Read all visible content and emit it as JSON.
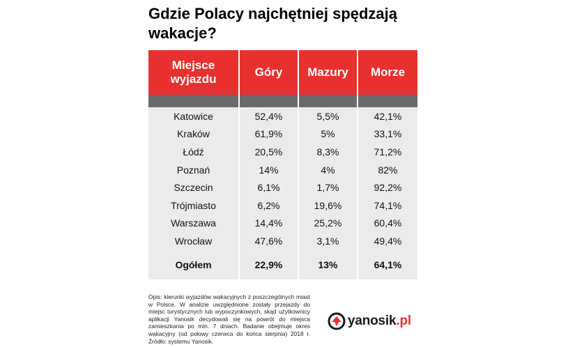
{
  "title": "Gdzie Polacy najchętniej spędzają wakacje?",
  "table": {
    "headers": [
      "Miejsce wyjazdu",
      "Góry",
      "Mazury",
      "Morze"
    ],
    "rows": [
      {
        "city": "Katowice",
        "gory": "52,4%",
        "mazury": "5,5%",
        "morze": "42,1%"
      },
      {
        "city": "Kraków",
        "gory": "61,9%",
        "mazury": "5%",
        "morze": "33,1%"
      },
      {
        "city": "Łódź",
        "gory": "20,5%",
        "mazury": "8,3%",
        "morze": "71,2%"
      },
      {
        "city": "Poznań",
        "gory": "14%",
        "mazury": "4%",
        "morze": "82%"
      },
      {
        "city": "Szczecin",
        "gory": "6,1%",
        "mazury": "1,7%",
        "morze": "92,2%"
      },
      {
        "city": "Trójmiasto",
        "gory": "6,2%",
        "mazury": "19,6%",
        "morze": "74,1%"
      },
      {
        "city": "Warszawa",
        "gory": "14,4%",
        "mazury": "25,2%",
        "morze": "60,4%"
      },
      {
        "city": "Wrocław",
        "gory": "47,6%",
        "mazury": "3,1%",
        "morze": "49,4%"
      }
    ],
    "total": {
      "city": "Ogółem",
      "gory": "22,9%",
      "mazury": "13%",
      "morze": "64,1%"
    }
  },
  "footnote": "Opis: kierunki wyjazdów wakacyjnych z poszczególnych miast w Polsce. W analizie uwzględnione zostały przejazdy do miejsc turystycznych lub wypoczynkowych, skąd użytkownicy aplikacji Yanosik decydowali się na powrót do miejsca zamieszkania po min. 7 dniach. Badanie obejmuje okres wakacyjny (od połowy czerwca do końca sierpnia) 2018 r. Źródło: systemu Yanosik.",
  "logo": {
    "name": "yanosik",
    "tld": ".pl",
    "icon": "yanosik-logo-icon",
    "accent_color": "#e8312f"
  },
  "colors": {
    "header_bg": "#e8312f",
    "band_bg": "#6a6a6a",
    "row_bg": "#ebebeb"
  }
}
